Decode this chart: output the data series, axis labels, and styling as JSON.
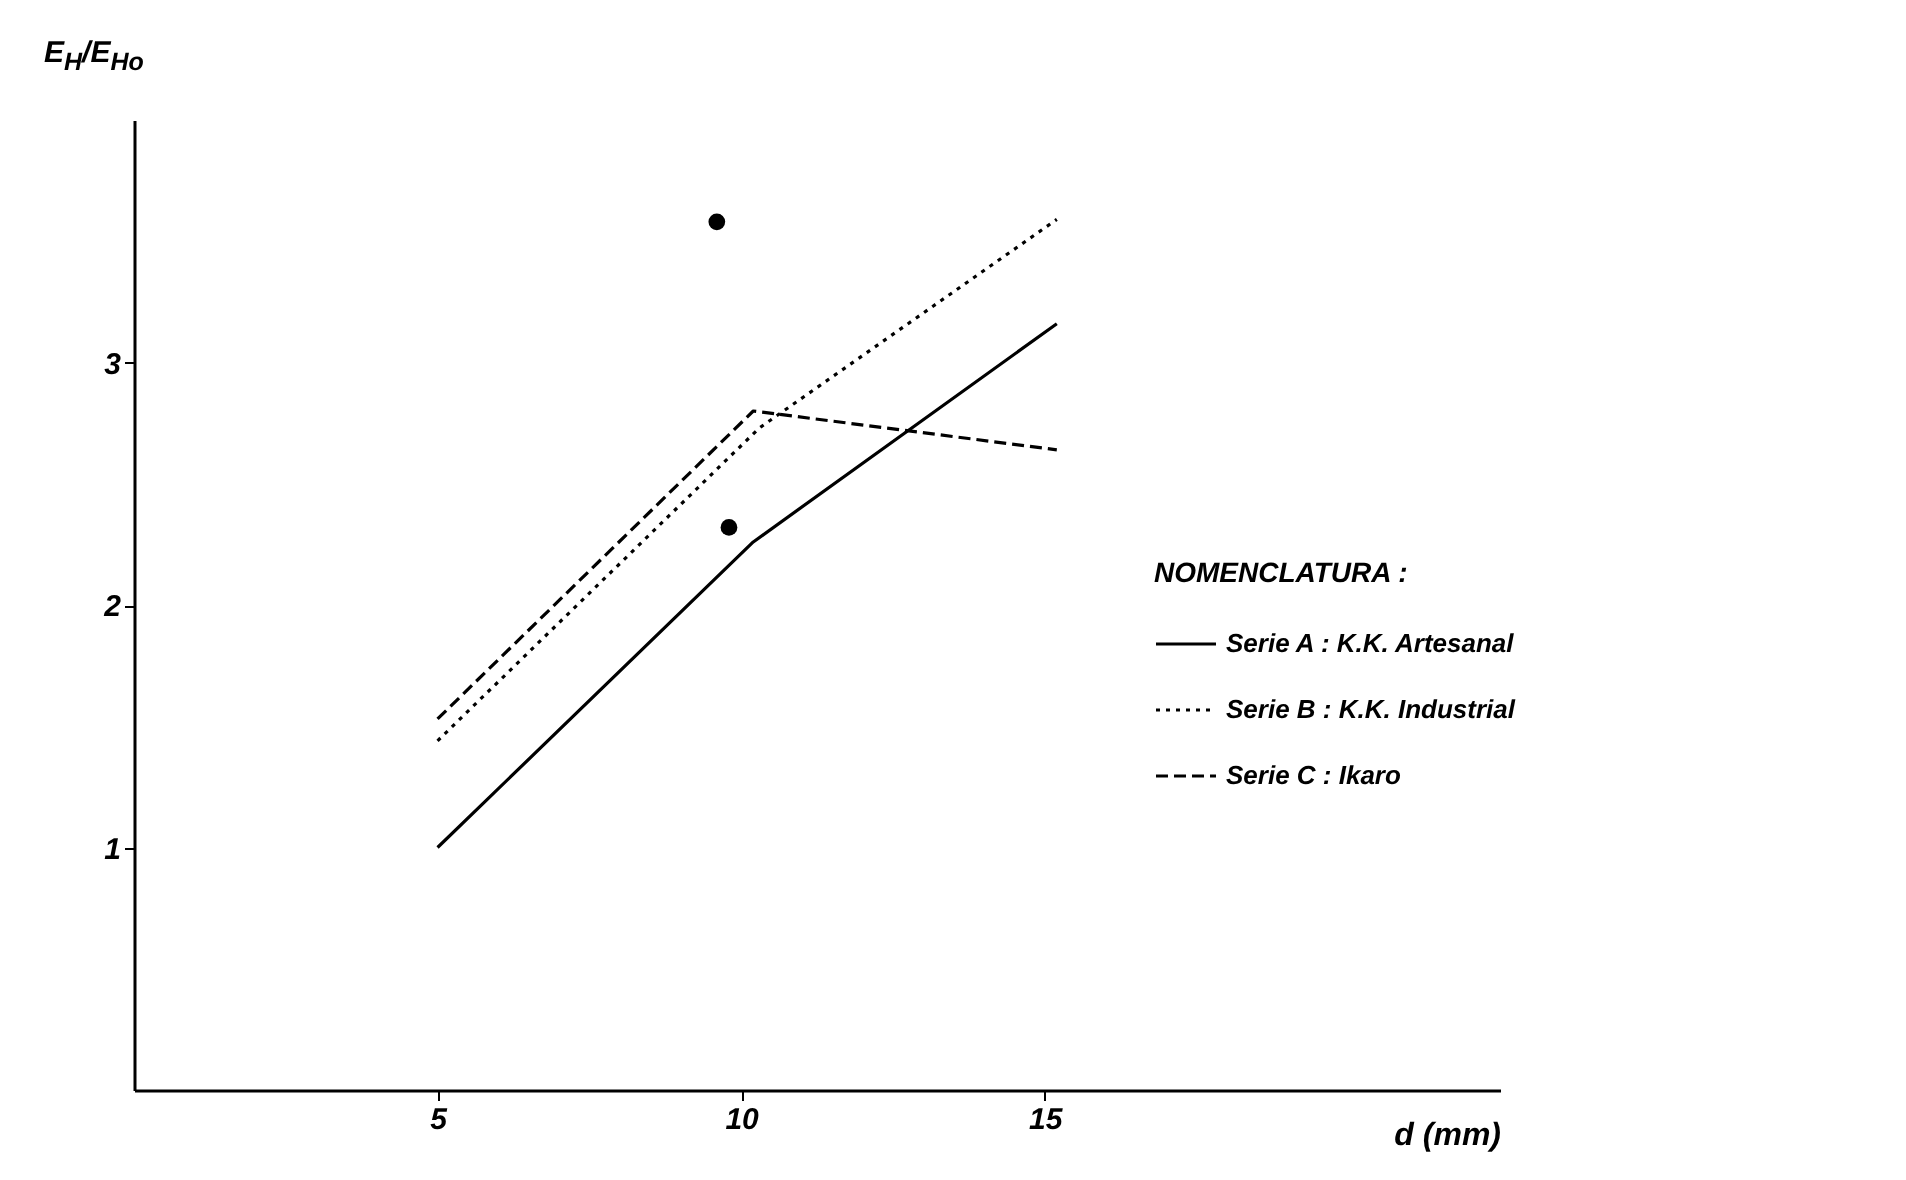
{
  "chart_data": {
    "type": "line",
    "xlabel": "d (mm)",
    "ylabel": "E$_{H}$/E$_{Ho}$",
    "legend_title": "NOMENCLATURA :",
    "xlim": [
      0,
      22.5
    ],
    "ylim": [
      0,
      4
    ],
    "xticks": [
      5,
      10,
      15
    ],
    "yticks": [
      1,
      2,
      3
    ],
    "grid": false,
    "legend": "right",
    "marker": "none",
    "series": [
      {
        "name": "Serie A : K.K. Artesanal",
        "color": "#000000",
        "line_style": "solid",
        "x": [
          5,
          10.2,
          15.2
        ],
        "values": [
          1.0,
          2.26,
          3.16
        ]
      },
      {
        "name": "Serie B : K.K. Industrial",
        "color": "#000000",
        "line_style": "dotted",
        "x": [
          5,
          10.3,
          15.2
        ],
        "values": [
          1.44,
          2.73,
          3.59
        ]
      },
      {
        "name": "Serie C : Ikaro",
        "color": "#000000",
        "line_style": "dashed",
        "x": [
          5,
          10.2,
          15.2
        ],
        "values": [
          1.53,
          2.8,
          2.64
        ]
      },
      {
        "type": "scatter",
        "marker": "circle",
        "color": "#000000",
        "x": [
          9.6,
          9.8
        ],
        "values": [
          3.58,
          2.32
        ]
      }
    ]
  }
}
